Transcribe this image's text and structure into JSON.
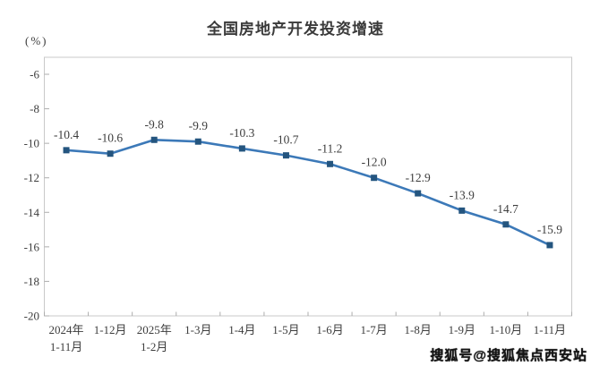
{
  "watermark": {
    "text": "搜狐号@搜狐焦点西安站"
  },
  "chart_data": {
    "type": "line",
    "title": "全国房地产开发投资增速",
    "unit_label": "(%)",
    "categories": [
      "2024年\n1-11月",
      "1-12月",
      "2025年\n1-2月",
      "1-3月",
      "1-4月",
      "1-5月",
      "1-6月",
      "1-7月",
      "1-8月",
      "1-9月",
      "1-10月",
      "1-11月"
    ],
    "values": [
      -10.4,
      -10.6,
      -9.8,
      -9.9,
      -10.3,
      -10.7,
      -11.2,
      -12.0,
      -12.9,
      -13.9,
      -14.7,
      -15.9
    ],
    "data_labels": [
      "-10.4",
      "-10.6",
      "-9.8",
      "-9.9",
      "-10.3",
      "-10.7",
      "-11.2",
      "-12.0",
      "-12.9",
      "-13.9",
      "-14.7",
      "-15.9"
    ],
    "yticks": [
      -6,
      -8,
      -10,
      -12,
      -14,
      -16,
      -18,
      -20
    ],
    "ylim": [
      -20,
      -6
    ],
    "grid": false,
    "legend": null,
    "colors": {
      "line": "#3c79b8",
      "marker": "#24557f",
      "axis_text": "#3d3d3d",
      "border": "#c9c9c9",
      "tick": "#adadad"
    }
  }
}
